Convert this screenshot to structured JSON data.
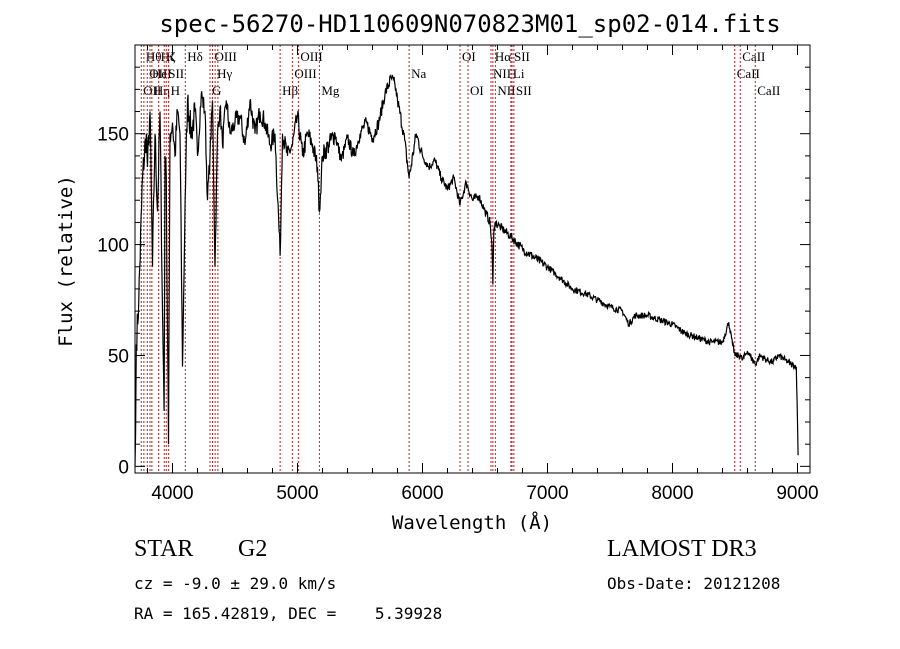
{
  "chart_data": {
    "type": "line",
    "title": "spec-56270-HD110609N070823M01_sp02-014.fits",
    "xlabel": "Wavelength (Å)",
    "ylabel": "Flux (relative)",
    "xlim": [
      3700,
      9100
    ],
    "ylim": [
      -3,
      190
    ],
    "xticks": [
      4000,
      5000,
      6000,
      7000,
      8000,
      9000
    ],
    "yticks": [
      0,
      50,
      100,
      150
    ],
    "series": [
      {
        "name": "flux",
        "x": [
          3700,
          3705,
          3710,
          3730,
          3760,
          3790,
          3800,
          3820,
          3840,
          3860,
          3880,
          3900,
          3920,
          3933,
          3940,
          3950,
          3968,
          3980,
          4000,
          4020,
          4040,
          4060,
          4080,
          4101,
          4120,
          4150,
          4180,
          4200,
          4230,
          4260,
          4280,
          4300,
          4320,
          4340,
          4360,
          4380,
          4400,
          4430,
          4460,
          4500,
          4540,
          4580,
          4620,
          4660,
          4700,
          4740,
          4780,
          4820,
          4861,
          4880,
          4920,
          4960,
          5000,
          5040,
          5080,
          5120,
          5160,
          5175,
          5200,
          5250,
          5300,
          5350,
          5400,
          5450,
          5500,
          5550,
          5600,
          5650,
          5700,
          5750,
          5780,
          5800,
          5850,
          5893,
          5950,
          6000,
          6050,
          6100,
          6150,
          6200,
          6250,
          6300,
          6350,
          6400,
          6450,
          6500,
          6540,
          6555,
          6563,
          6570,
          6580,
          6620,
          6700,
          6800,
          6900,
          7000,
          7100,
          7200,
          7300,
          7400,
          7500,
          7600,
          7650,
          7700,
          7800,
          7900,
          8000,
          8100,
          8200,
          8300,
          8400,
          8450,
          8480,
          8500,
          8542,
          8560,
          8600,
          8662,
          8700,
          8750,
          8800,
          8850,
          8900,
          8950,
          8990,
          9000,
          9005
        ],
        "y": [
          0,
          15,
          55,
          75,
          130,
          150,
          135,
          160,
          90,
          150,
          115,
          160,
          70,
          25,
          140,
          130,
          10,
          150,
          155,
          140,
          160,
          150,
          45,
          120,
          165,
          150,
          160,
          140,
          168,
          160,
          120,
          140,
          165,
          90,
          150,
          162,
          145,
          165,
          150,
          155,
          158,
          145,
          165,
          150,
          160,
          155,
          145,
          150,
          95,
          150,
          140,
          145,
          158,
          140,
          150,
          145,
          135,
          115,
          140,
          145,
          150,
          138,
          148,
          140,
          150,
          155,
          148,
          155,
          168,
          175,
          172,
          165,
          150,
          130,
          150,
          140,
          135,
          138,
          130,
          125,
          130,
          118,
          128,
          120,
          122,
          115,
          110,
          100,
          82,
          105,
          110,
          108,
          104,
          98,
          94,
          90,
          85,
          80,
          78,
          75,
          72,
          70,
          64,
          68,
          68,
          66,
          64,
          60,
          58,
          56,
          56,
          65,
          55,
          50,
          50,
          48,
          52,
          46,
          50,
          48,
          47,
          50,
          48,
          46,
          45,
          20,
          5
        ]
      }
    ],
    "lines": [
      {
        "x": 3750,
        "label": "OII",
        "row": 2
      },
      {
        "x": 3771,
        "label": "Hθ",
        "row": 0
      },
      {
        "x": 3798,
        "label": "OII",
        "row": 1
      },
      {
        "x": 3820,
        "label": "HeI",
        "row": 1
      },
      {
        "x": 3835,
        "label": "Hη",
        "row": 2
      },
      {
        "x": 3889,
        "label": "Hζ",
        "row": 0
      },
      {
        "x": 3934,
        "label": "K",
        "row": 0
      },
      {
        "x": 3950,
        "label": "SII",
        "row": 1
      },
      {
        "x": 3969,
        "label": "H",
        "row": 2
      },
      {
        "x": 4102,
        "label": "Hδ",
        "row": 0
      },
      {
        "x": 4300,
        "label": "G",
        "row": 2
      },
      {
        "x": 4320,
        "label": "OIII",
        "row": 0
      },
      {
        "x": 4341,
        "label": "Hγ",
        "row": 1
      },
      {
        "x": 4363,
        "label": "",
        "row": 0
      },
      {
        "x": 4861,
        "label": "Hβ",
        "row": 2
      },
      {
        "x": 4959,
        "label": "OIII",
        "row": 1
      },
      {
        "x": 5007,
        "label": "OIII",
        "row": 0
      },
      {
        "x": 5175,
        "label": "Mg",
        "row": 2
      },
      {
        "x": 5893,
        "label": "Na",
        "row": 1
      },
      {
        "x": 6300,
        "label": "OI",
        "row": 0
      },
      {
        "x": 6364,
        "label": "OI",
        "row": 2
      },
      {
        "x": 6548,
        "label": "NII",
        "row": 1
      },
      {
        "x": 6563,
        "label": "Hα",
        "row": 0
      },
      {
        "x": 6583,
        "label": "NII",
        "row": 2
      },
      {
        "x": 6707,
        "label": "Li",
        "row": 1
      },
      {
        "x": 6716,
        "label": "SII",
        "row": 0
      },
      {
        "x": 6731,
        "label": "SII",
        "row": 2
      },
      {
        "x": 8498,
        "label": "CaII",
        "row": 1
      },
      {
        "x": 8542,
        "label": "CaII",
        "row": 0
      },
      {
        "x": 8662,
        "label": "CaII",
        "row": 2
      }
    ]
  },
  "info": {
    "object_class": "STAR",
    "subclass": "G2",
    "survey": "LAMOST DR3",
    "redshift": "cz = -9.0 ± 29.0 km/s",
    "obs_date": "Obs-Date: 20121208",
    "coords": "RA = 165.42819, DEC =    5.39928"
  },
  "colors": {
    "spectrum": "#000000",
    "line_markers": "#b22222"
  }
}
